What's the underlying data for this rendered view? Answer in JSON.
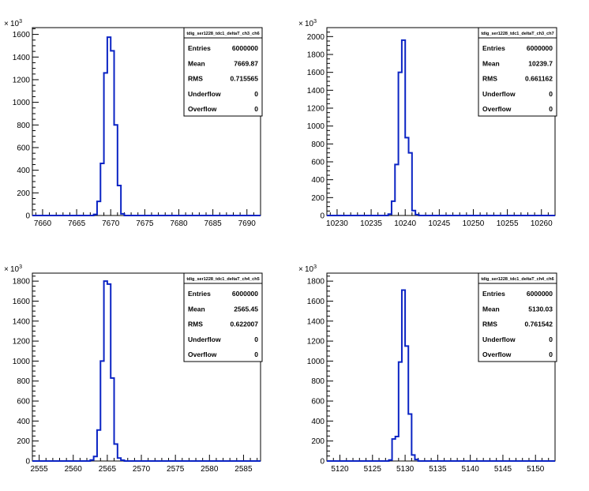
{
  "chart_data": [
    {
      "type": "histogram",
      "x_ticks": [
        7660,
        7665,
        7670,
        7675,
        7680,
        7685,
        7690
      ],
      "y_ticks": [
        0,
        200,
        400,
        600,
        800,
        1000,
        1200,
        1400,
        1600
      ],
      "y_ticks_label": [
        "0",
        "200",
        "400",
        "600",
        "800",
        "1000",
        "1200",
        "1400",
        "1600"
      ],
      "y_exponent": "10",
      "y_exponent_power": "3",
      "xlim": [
        7658.5,
        7692
      ],
      "ylim": [
        0,
        1660
      ],
      "line_color": "#0b24c4",
      "bin_width": 0.5,
      "bins": [
        {
          "x": 7667.5,
          "y": 10
        },
        {
          "x": 7668.0,
          "y": 125
        },
        {
          "x": 7668.5,
          "y": 460
        },
        {
          "x": 7669.0,
          "y": 1260
        },
        {
          "x": 7669.5,
          "y": 1575
        },
        {
          "x": 7670.0,
          "y": 1455
        },
        {
          "x": 7670.5,
          "y": 800
        },
        {
          "x": 7671.0,
          "y": 265
        },
        {
          "x": 7671.5,
          "y": 15
        }
      ],
      "stats": {
        "title": "tdig_ser1228_tdc1_deltaT_ch3_ch6",
        "rows": [
          {
            "label": "Entries",
            "value": "6000000"
          },
          {
            "label": "Mean",
            "value": "7669.87"
          },
          {
            "label": "RMS",
            "value": "0.715565"
          },
          {
            "label": "Underflow",
            "value": "0"
          },
          {
            "label": "Overflow",
            "value": "0"
          }
        ]
      }
    },
    {
      "type": "histogram",
      "x_ticks": [
        10230,
        10235,
        10240,
        10245,
        10250,
        10255,
        10260
      ],
      "y_ticks": [
        0,
        200,
        400,
        600,
        800,
        1000,
        1200,
        1400,
        1600,
        1800,
        2000
      ],
      "y_ticks_label": [
        "0",
        "200",
        "400",
        "600",
        "800",
        "1000",
        "1200",
        "1400",
        "1600",
        "1800",
        "2000"
      ],
      "y_exponent": "10",
      "y_exponent_power": "3",
      "xlim": [
        10228.5,
        10262
      ],
      "ylim": [
        0,
        2100
      ],
      "line_color": "#0b24c4",
      "bin_width": 0.5,
      "bins": [
        {
          "x": 10237.5,
          "y": 15
        },
        {
          "x": 10238.0,
          "y": 160
        },
        {
          "x": 10238.5,
          "y": 570
        },
        {
          "x": 10239.0,
          "y": 1600
        },
        {
          "x": 10239.5,
          "y": 1960
        },
        {
          "x": 10240.0,
          "y": 870
        },
        {
          "x": 10240.5,
          "y": 700
        },
        {
          "x": 10241.0,
          "y": 55
        },
        {
          "x": 10241.5,
          "y": 10
        }
      ],
      "stats": {
        "title": "tdig_ser1228_tdc1_deltaT_ch3_ch7",
        "rows": [
          {
            "label": "Entries",
            "value": "6000000"
          },
          {
            "label": "Mean",
            "value": "10239.7"
          },
          {
            "label": "RMS",
            "value": "0.661162"
          },
          {
            "label": "Underflow",
            "value": "0"
          },
          {
            "label": "Overflow",
            "value": "0"
          }
        ]
      }
    },
    {
      "type": "histogram",
      "x_ticks": [
        2555,
        2560,
        2565,
        2570,
        2575,
        2580,
        2585
      ],
      "y_ticks": [
        0,
        200,
        400,
        600,
        800,
        1000,
        1200,
        1400,
        1600,
        1800
      ],
      "y_ticks_label": [
        "0",
        "200",
        "400",
        "600",
        "800",
        "1000",
        "1200",
        "1400",
        "1600",
        "1800"
      ],
      "y_exponent": "10",
      "y_exponent_power": "3",
      "xlim": [
        2554,
        2587.5
      ],
      "ylim": [
        0,
        1880
      ],
      "line_color": "#0b24c4",
      "bin_width": 0.5,
      "bins": [
        {
          "x": 2562.5,
          "y": 10
        },
        {
          "x": 2563.0,
          "y": 45
        },
        {
          "x": 2563.5,
          "y": 310
        },
        {
          "x": 2564.0,
          "y": 1000
        },
        {
          "x": 2564.5,
          "y": 1800
        },
        {
          "x": 2565.0,
          "y": 1770
        },
        {
          "x": 2565.5,
          "y": 830
        },
        {
          "x": 2566.0,
          "y": 170
        },
        {
          "x": 2566.5,
          "y": 30
        },
        {
          "x": 2567.0,
          "y": 8
        }
      ],
      "stats": {
        "title": "tdig_ser1228_tdc1_deltaT_ch4_ch5",
        "rows": [
          {
            "label": "Entries",
            "value": "6000000"
          },
          {
            "label": "Mean",
            "value": "2565.45"
          },
          {
            "label": "RMS",
            "value": "0.622007"
          },
          {
            "label": "Underflow",
            "value": "0"
          },
          {
            "label": "Overflow",
            "value": "0"
          }
        ]
      }
    },
    {
      "type": "histogram",
      "x_ticks": [
        5120,
        5125,
        5130,
        5135,
        5140,
        5145,
        5150
      ],
      "y_ticks": [
        0,
        200,
        400,
        600,
        800,
        1000,
        1200,
        1400,
        1600,
        1800
      ],
      "y_ticks_label": [
        "0",
        "200",
        "400",
        "600",
        "800",
        "1000",
        "1200",
        "1400",
        "1600",
        "1800"
      ],
      "y_exponent": "10",
      "y_exponent_power": "3",
      "xlim": [
        5118,
        5153
      ],
      "ylim": [
        0,
        1880
      ],
      "line_color": "#0b24c4",
      "bin_width": 0.5,
      "bins": [
        {
          "x": 5127.5,
          "y": 10
        },
        {
          "x": 5128.0,
          "y": 220
        },
        {
          "x": 5128.5,
          "y": 245
        },
        {
          "x": 5129.0,
          "y": 990
        },
        {
          "x": 5129.5,
          "y": 1710
        },
        {
          "x": 5130.0,
          "y": 1150
        },
        {
          "x": 5130.5,
          "y": 470
        },
        {
          "x": 5131.0,
          "y": 60
        },
        {
          "x": 5131.5,
          "y": 15
        }
      ],
      "stats": {
        "title": "tdig_ser1228_tdc1_deltaT_ch4_ch6",
        "rows": [
          {
            "label": "Entries",
            "value": "6000000"
          },
          {
            "label": "Mean",
            "value": "5130.03"
          },
          {
            "label": "RMS",
            "value": "0.761542"
          },
          {
            "label": "Underflow",
            "value": "0"
          },
          {
            "label": "Overflow",
            "value": "0"
          }
        ]
      }
    }
  ]
}
